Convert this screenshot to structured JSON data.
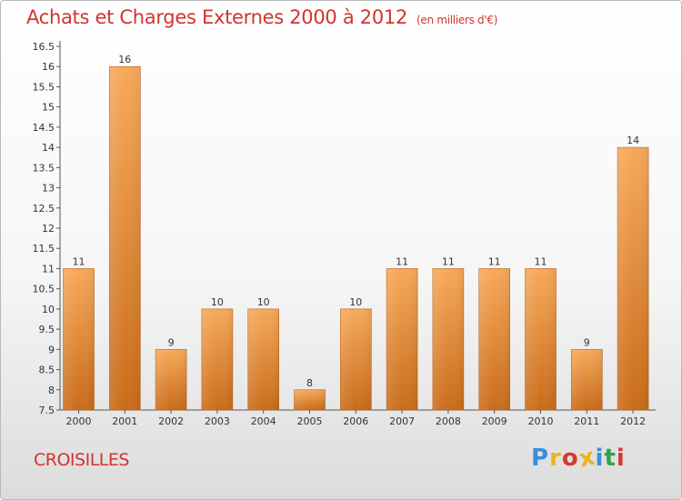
{
  "title": "Achats et Charges Externes 2000 à 2012",
  "unit_note": "(en milliers d'€)",
  "place": "CROISILLES",
  "logo": {
    "letters": [
      "P",
      "r",
      "o",
      "x",
      "i",
      "t",
      "i"
    ],
    "colors": [
      "#3a8fd8",
      "#e8b51a",
      "#d23a2f",
      "#e8b51a",
      "#3a8fd8",
      "#2fa34a",
      "#d23a2f"
    ]
  },
  "colors": {
    "title": "#d2342e",
    "bar_light": "#f6a555",
    "bar_dark": "#cc6f1c",
    "axis": "#555555"
  },
  "chart_data": {
    "type": "bar",
    "title": "Achats et Charges Externes 2000 à 2012",
    "subtitle": "(en milliers d'€)",
    "categories": [
      "2000",
      "2001",
      "2002",
      "2003",
      "2004",
      "2005",
      "2006",
      "2007",
      "2008",
      "2009",
      "2010",
      "2011",
      "2012"
    ],
    "values": [
      11,
      16,
      9,
      10,
      10,
      8,
      10,
      11,
      11,
      11,
      11,
      9,
      14
    ],
    "data_labels": [
      "11",
      "16",
      "9",
      "10",
      "10",
      "8",
      "10",
      "11",
      "11",
      "11",
      "11",
      "9",
      "14"
    ],
    "ylim": [
      7.5,
      16.5
    ],
    "yticks": [
      7.5,
      8,
      8.5,
      9,
      9.5,
      10,
      10.5,
      11,
      11.5,
      12,
      12.5,
      13,
      13.5,
      14,
      14.5,
      15,
      15.5,
      16,
      16.5
    ],
    "ytick_labels": [
      "7.5",
      "8",
      "8.5",
      "9",
      "9.5",
      "10",
      "10.5",
      "11",
      "11.5",
      "12",
      "12.5",
      "13",
      "13.5",
      "14",
      "14.5",
      "15",
      "15.5",
      "16",
      "16.5"
    ],
    "grid": false,
    "legend": "none"
  }
}
